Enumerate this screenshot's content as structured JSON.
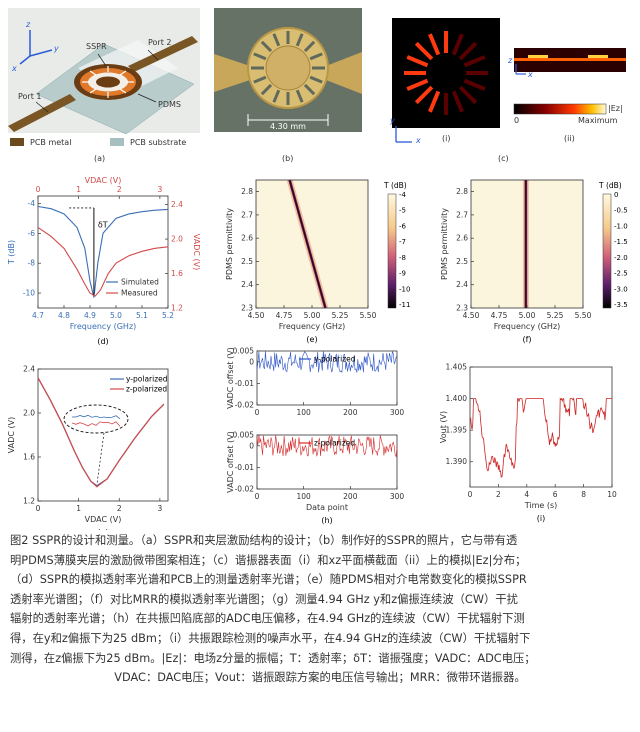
{
  "panel_a": {
    "labels": {
      "z": "z",
      "y": "y",
      "x": "x",
      "sspr": "SSPR",
      "port1": "Port 1",
      "port2": "Port 2",
      "pdms": "PDMS"
    },
    "legend": [
      {
        "label": "PCB metal",
        "color": "#6b4a1e"
      },
      {
        "label": "PCB substrate",
        "color": "#a8bfbf"
      }
    ],
    "tag": "(a)"
  },
  "panel_b": {
    "scale": "4.30 mm",
    "tag": "(b)"
  },
  "panel_c": {
    "axes_i": {
      "y": "y",
      "x": "x"
    },
    "axes_ii": {
      "z": "z",
      "x": "x"
    },
    "colorbar_title": "|Ez|",
    "colorbar_min": "0",
    "colorbar_max": "Maximum",
    "sub_i": "(i)",
    "sub_ii": "(ii)",
    "tag": "(c)"
  },
  "chart_data": [
    {
      "id": "d",
      "type": "line",
      "xlabel": "Frequency (GHz)",
      "ylabel": "T (dB)",
      "top_xlabel": "VDAC (V)",
      "right_ylabel": "VADC (V)",
      "xlim": [
        4.7,
        5.2
      ],
      "ylim": [
        -11,
        -3.5
      ],
      "xticks": [
        "4.7",
        "4.8",
        "4.9",
        "5.0",
        "5.1",
        "5.2"
      ],
      "yticks": [
        "-4",
        "-6",
        "-8",
        "-10"
      ],
      "top_xticks": [
        "0",
        "1",
        "2",
        "3"
      ],
      "right_yticks": [
        "2.4",
        "2.0",
        "1.6",
        "1.2"
      ],
      "annotation": "δT",
      "series": [
        {
          "name": "Simulated",
          "color": "#3a6fb5",
          "x": [
            4.7,
            4.75,
            4.8,
            4.85,
            4.88,
            4.9,
            4.915,
            4.93,
            4.95,
            5.0,
            5.05,
            5.1,
            5.15,
            5.2
          ],
          "y": [
            -4.2,
            -4.35,
            -4.7,
            -5.6,
            -7.0,
            -9.2,
            -10.3,
            -8.0,
            -6.0,
            -5.0,
            -4.7,
            -4.55,
            -4.45,
            -4.4
          ]
        },
        {
          "name": "Measured",
          "color": "#d24a4a",
          "x": [
            4.7,
            4.75,
            4.8,
            4.85,
            4.88,
            4.9,
            4.92,
            4.94,
            4.97,
            5.0,
            5.05,
            5.1,
            5.15,
            5.2
          ],
          "y": [
            -5.6,
            -6.2,
            -7.0,
            -8.4,
            -9.4,
            -10.0,
            -10.2,
            -9.8,
            -8.7,
            -8.0,
            -7.5,
            -7.2,
            -7.0,
            -6.9
          ]
        }
      ],
      "tag": "(d)"
    },
    {
      "id": "e",
      "type": "heatmap",
      "xlabel": "Frequency (GHz)",
      "ylabel": "PDMS permittivity",
      "xlim": [
        4.5,
        5.5
      ],
      "ylim": [
        2.3,
        2.85
      ],
      "xticks": [
        "4.50",
        "4.75",
        "5.00",
        "5.25",
        "5.50"
      ],
      "yticks": [
        "2.8",
        "2.7",
        "2.6",
        "2.5",
        "2.4",
        "2.3"
      ],
      "colorbar_title": "T (dB)",
      "colorbar_ticks": [
        "-4",
        "-5",
        "-6",
        "-7",
        "-8",
        "-9",
        "-10",
        "-11"
      ],
      "resonance": [
        {
          "y": 2.85,
          "x": 4.8
        },
        {
          "y": 2.3,
          "x": 5.12
        }
      ],
      "tag": "(e)"
    },
    {
      "id": "f",
      "type": "heatmap",
      "xlabel": "Frequency (GHz)",
      "ylabel": "PDMS permittivity",
      "xlim": [
        4.5,
        5.5
      ],
      "ylim": [
        2.3,
        2.85
      ],
      "xticks": [
        "4.50",
        "4.75",
        "5.00",
        "5.25",
        "5.50"
      ],
      "yticks": [
        "2.8",
        "2.7",
        "2.6",
        "2.5",
        "2.4",
        "2.3"
      ],
      "colorbar_title": "T (dB)",
      "colorbar_ticks": [
        "0",
        "-0.5",
        "-1.0",
        "-1.5",
        "-2.0",
        "-2.5",
        "-3.0",
        "-3.5"
      ],
      "resonance": [
        {
          "y": 2.85,
          "x": 4.99
        },
        {
          "y": 2.3,
          "x": 4.99
        }
      ],
      "tag": "(f)"
    },
    {
      "id": "g",
      "type": "line",
      "xlabel": "VDAC (V)",
      "ylabel": "VADC (V)",
      "xlim": [
        0,
        3.2
      ],
      "ylim": [
        1.2,
        2.4
      ],
      "xticks": [
        "0",
        "1",
        "2",
        "3"
      ],
      "yticks": [
        "2.4",
        "2.0",
        "1.6",
        "1.2"
      ],
      "series": [
        {
          "name": "y-polarized",
          "color": "#3a6fb5",
          "x": [
            0,
            0.3,
            0.6,
            0.9,
            1.1,
            1.3,
            1.45,
            1.7,
            2.0,
            2.4,
            2.8,
            3.1
          ],
          "y": [
            2.32,
            2.12,
            1.9,
            1.65,
            1.5,
            1.38,
            1.34,
            1.4,
            1.57,
            1.78,
            1.97,
            2.08
          ]
        },
        {
          "name": "z-polarized",
          "color": "#d24a4a",
          "x": [
            0,
            0.3,
            0.6,
            0.9,
            1.1,
            1.3,
            1.45,
            1.7,
            2.0,
            2.4,
            2.8,
            3.1
          ],
          "y": [
            2.32,
            2.12,
            1.9,
            1.65,
            1.5,
            1.38,
            1.33,
            1.4,
            1.57,
            1.78,
            1.97,
            2.08
          ]
        }
      ],
      "tag": "(g)"
    },
    {
      "id": "h1",
      "type": "line",
      "xlabel": "",
      "ylabel": "VADC offset (V)",
      "xlim": [
        0,
        300
      ],
      "ylim": [
        -0.02,
        0.005
      ],
      "xticks": [
        "0",
        "100",
        "200",
        "300"
      ],
      "yticks": [
        "0.005",
        "0",
        "-0.005",
        "-0.01",
        "-0.015",
        "-0.02"
      ],
      "series": [
        {
          "name": "y-polarized",
          "color": "#2a52c8"
        }
      ]
    },
    {
      "id": "h2",
      "type": "line",
      "xlabel": "Data point",
      "ylabel": "VADC offset (V)",
      "xlim": [
        0,
        300
      ],
      "ylim": [
        -0.02,
        0.005
      ],
      "xticks": [
        "0",
        "100",
        "200",
        "300"
      ],
      "yticks": [
        "0.005",
        "0",
        "-0.005",
        "-0.01",
        "-0.015",
        "-0.02"
      ],
      "series": [
        {
          "name": "z-polarized",
          "color": "#d42a2a"
        }
      ],
      "tag": "(h)"
    },
    {
      "id": "i",
      "type": "line",
      "xlabel": "Time (s)",
      "ylabel": "Vout (V)",
      "xlim": [
        0,
        10
      ],
      "ylim": [
        1.386,
        1.405
      ],
      "xticks": [
        "0",
        "2",
        "4",
        "6",
        "8",
        "10"
      ],
      "yticks": [
        "1.405",
        "1.400",
        "1.395",
        "1.390"
      ],
      "series": [
        {
          "color": "#cc2222"
        }
      ],
      "tag": "(i)"
    }
  ],
  "caption": {
    "lines": [
      "图2 SSPR的设计和测量。（a）SSPR和夹层激励结构的设计；（b）制作好的SSPR的照片，它与带有透",
      "明PDMS薄膜夹层的激励微带图案相连；（c）谐振器表面（i）和xz平面横截面（ii）上的模拟|Ez|分布；",
      "（d）SSPR的模拟透射率光谱和PCB上的测量透射率光谱；（e）随PDMS相对介电常数变化的模拟SSPR",
      "透射率光谱图；（f）对比MRR的模拟透射率光谱图；（g）测量4.94 GHz y和z偏振连续波（CW）干扰",
      "辐射的透射率光谱；（h）在共振凹陷底部的ADC电压偏移，在4.94 GHz的连续波（CW）干扰辐射下测",
      "得，在y和z偏振下为25 dBm；（i）共振跟踪检测的噪声水平，在4.94 GHz的连续波（CW）干扰辐射下",
      "测得，在z偏振下为25 dBm。|Ez|：电场z分量的振幅；T：透射率；δT：谐振强度；VADC：ADC电压；",
      "VDAC：DAC电压；Vout：谐振跟踪方案的电压信号输出；MRR：微带环谐振器。"
    ]
  }
}
